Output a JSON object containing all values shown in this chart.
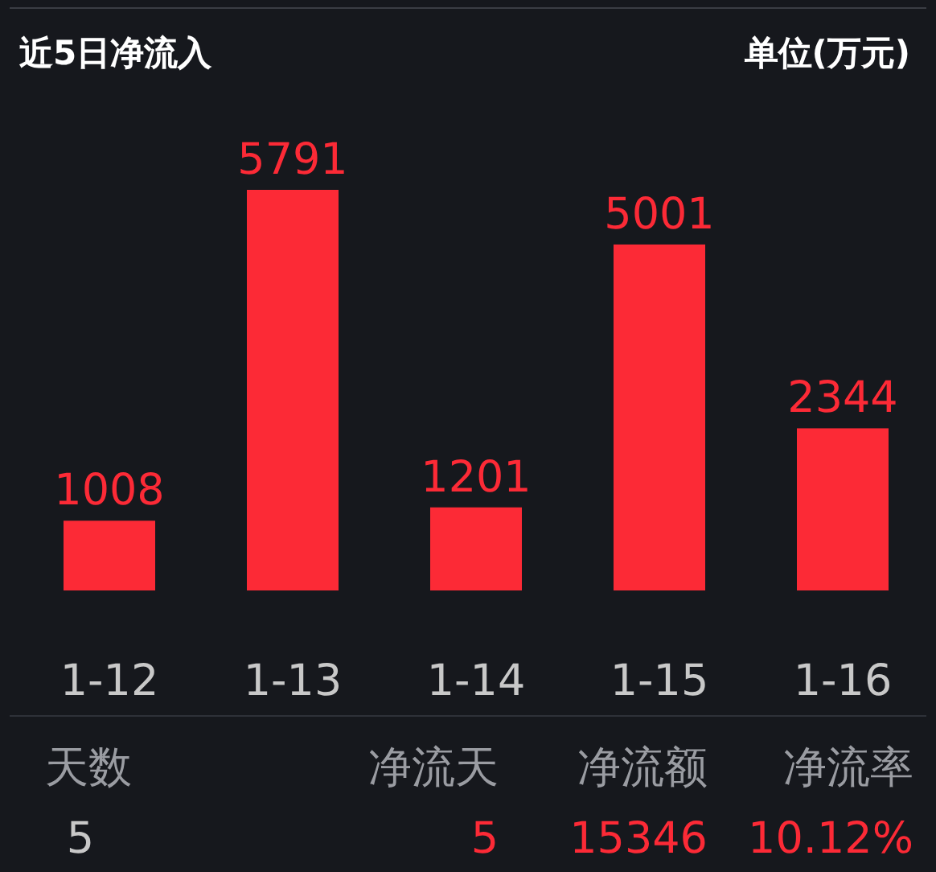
{
  "chart_data": {
    "type": "bar",
    "title": "近5日净流入",
    "subtitle": "单位(万元)",
    "categories": [
      "1-12",
      "1-13",
      "1-14",
      "1-15",
      "1-16"
    ],
    "values": [
      1008,
      5791,
      1201,
      5001,
      2344
    ],
    "color": "#fc2a36",
    "data_labels": true,
    "annotations": [
      "天数",
      "净流天",
      "净流额",
      "净流率",
      "5",
      "5",
      "15346",
      "10.12%"
    ]
  }
}
